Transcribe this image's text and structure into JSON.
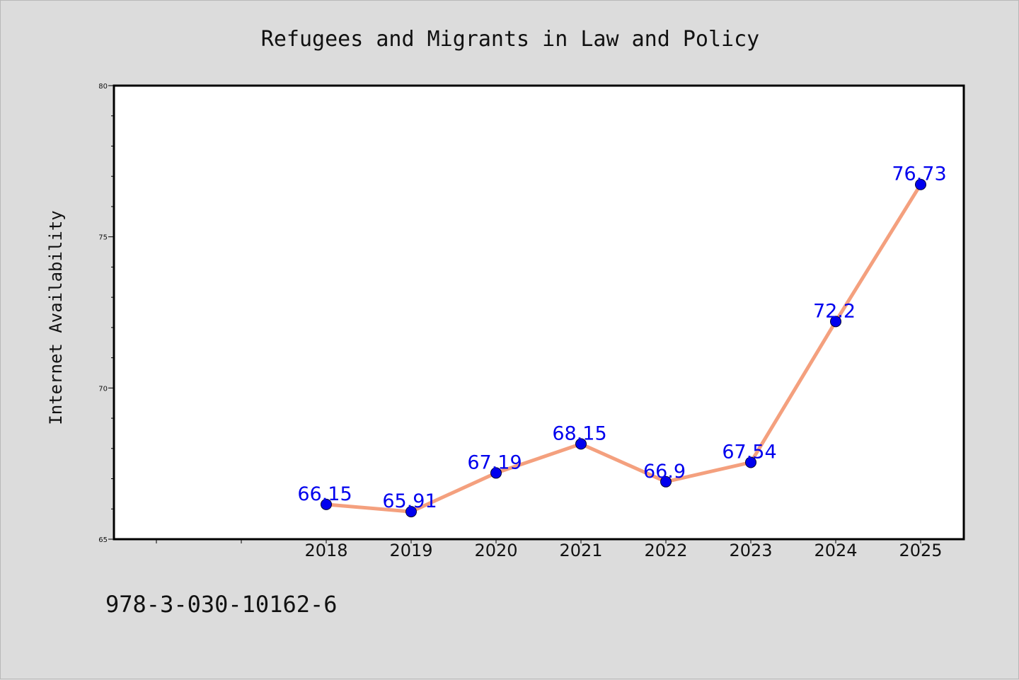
{
  "chart_data": {
    "type": "line",
    "title": "Refugees and Migrants in Law and Policy",
    "xlabel": "",
    "ylabel": "Internet Availability",
    "categories": [
      "2018",
      "2019",
      "2020",
      "2021",
      "2022",
      "2023",
      "2024",
      "2025"
    ],
    "series": [
      {
        "values": [
          66.15,
          65.91,
          67.19,
          68.15,
          66.9,
          67.54,
          72.2,
          76.73
        ]
      }
    ],
    "data_labels": [
      "66.15",
      "65.91",
      "67.19",
      "68.15",
      "66.9",
      "67.54",
      "72.2",
      "76.73"
    ],
    "ylim": [
      65,
      80
    ],
    "yticks": [
      "65",
      "70",
      "75",
      "80"
    ],
    "grid": false,
    "line_color": "#f4a07e",
    "marker_color": "#0000ee",
    "label_color": "#0000ee",
    "plot_background": "#ffffff",
    "figure_background": "#dcdcdc"
  },
  "footer": {
    "isbn": "978-3-030-10162-6"
  }
}
